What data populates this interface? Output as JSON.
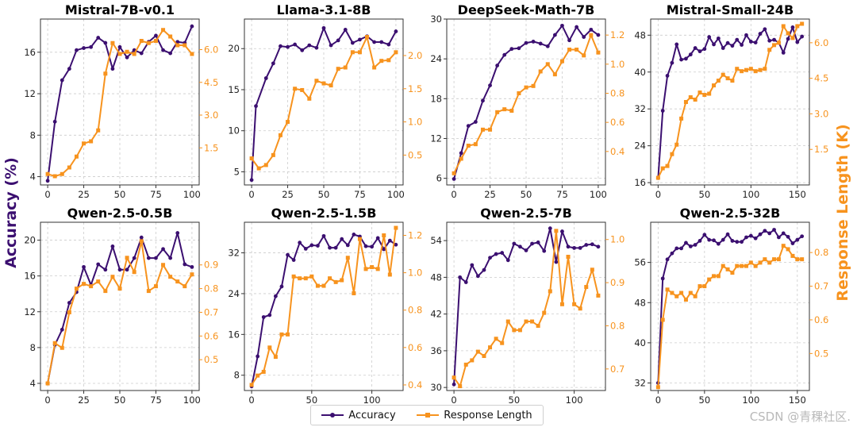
{
  "figure": {
    "left_ylabel": "Accuracy (%)",
    "right_ylabel": "Response Length (K)",
    "acc_color": "#3b0f70",
    "len_color": "#f7931e",
    "watermark": "CSDN @青稞社区.",
    "legend": {
      "accuracy": "Accuracy",
      "length": "Response Length"
    }
  },
  "chart_data": [
    {
      "type": "line",
      "title": "Mistral-7B-v0.1",
      "x": [
        0,
        5,
        10,
        15,
        20,
        25,
        30,
        35,
        40,
        45,
        50,
        55,
        60,
        65,
        70,
        75,
        80,
        85,
        90,
        95,
        100
      ],
      "xlim": [
        -5,
        105
      ],
      "xticks": [
        0,
        25,
        50,
        75,
        100
      ],
      "ylim": [
        3.2,
        19.2
      ],
      "yticks": [
        4,
        8,
        12,
        16
      ],
      "y2lim": [
        -0.2,
        7.4
      ],
      "y2ticks": [
        "1.5",
        "3.0",
        "4.5",
        "6.0"
      ],
      "series": [
        {
          "name": "Accuracy",
          "axis": "left",
          "values": [
            3.6,
            9.3,
            13.3,
            14.4,
            16.2,
            16.4,
            16.5,
            17.4,
            16.9,
            14.4,
            16.5,
            15.5,
            16.2,
            15.9,
            17.0,
            17.6,
            16.2,
            15.9,
            17.0,
            16.9,
            18.5
          ]
        },
        {
          "name": "Response Length",
          "axis": "right",
          "values": [
            0.3,
            0.2,
            0.3,
            0.6,
            1.1,
            1.7,
            1.8,
            2.3,
            4.9,
            6.3,
            5.8,
            5.9,
            5.8,
            6.4,
            6.3,
            6.4,
            6.9,
            6.6,
            6.2,
            6.2,
            5.8
          ]
        }
      ]
    },
    {
      "type": "line",
      "title": "Llama-3.1-8B",
      "x": [
        0,
        3,
        5,
        10,
        15,
        20,
        25,
        30,
        35,
        40,
        45,
        50,
        55,
        60,
        65,
        70,
        75,
        80,
        85,
        90,
        95,
        100
      ],
      "xlim": [
        -5,
        105
      ],
      "xticks": [
        0,
        25,
        50,
        75,
        100
      ],
      "ylim": [
        3.4,
        23.6
      ],
      "yticks": [
        5,
        10,
        15,
        20
      ],
      "y2lim": [
        0.05,
        2.55
      ],
      "y2ticks": [
        "0.5",
        "1.0",
        "1.5",
        "2.0"
      ],
      "series": [
        {
          "name": "Accuracy",
          "axis": "left",
          "values": [
            4.0,
            13.0,
            null,
            16.4,
            18.2,
            20.3,
            20.2,
            20.5,
            19.8,
            20.4,
            20.1,
            22.5,
            20.4,
            21.0,
            22.3,
            20.7,
            21.1,
            21.5,
            20.8,
            20.8,
            20.5,
            22.1
          ]
        },
        {
          "name": "Response Length",
          "axis": "right",
          "values": [
            0.45,
            null,
            0.3,
            0.35,
            0.5,
            0.8,
            1.0,
            1.5,
            1.48,
            1.35,
            1.62,
            1.58,
            1.55,
            1.8,
            1.82,
            2.05,
            2.05,
            2.28,
            1.82,
            1.92,
            1.93,
            2.05
          ]
        }
      ]
    },
    {
      "type": "line",
      "title": "DeepSeek-Math-7B",
      "x": [
        0,
        5,
        10,
        15,
        20,
        25,
        30,
        35,
        40,
        45,
        50,
        55,
        60,
        65,
        70,
        75,
        80,
        85,
        90,
        95,
        100
      ],
      "xlim": [
        -5,
        105
      ],
      "xticks": [
        0,
        25,
        50,
        75,
        100
      ],
      "ylim": [
        5.0,
        30.0
      ],
      "yticks": [
        6,
        12,
        18,
        24,
        30
      ],
      "y2lim": [
        0.17,
        1.31
      ],
      "y2ticks": [
        "0.4",
        "0.6",
        "0.8",
        "1.0",
        "1.2"
      ],
      "series": [
        {
          "name": "Accuracy",
          "axis": "left",
          "values": [
            5.9,
            9.8,
            13.9,
            14.5,
            17.7,
            20.0,
            23.0,
            24.6,
            25.5,
            25.6,
            26.4,
            26.6,
            26.3,
            25.9,
            27.6,
            29.0,
            26.8,
            28.8,
            27.3,
            28.4,
            27.6
          ]
        },
        {
          "name": "Response Length",
          "axis": "right",
          "values": [
            0.25,
            0.35,
            0.44,
            0.45,
            0.55,
            0.55,
            0.67,
            0.69,
            0.68,
            0.8,
            0.84,
            0.85,
            0.95,
            1.0,
            0.93,
            1.02,
            1.1,
            1.1,
            1.06,
            1.2,
            1.08
          ]
        }
      ]
    },
    {
      "type": "line",
      "title": "Mistral-Small-24B",
      "x": [
        0,
        5,
        10,
        15,
        20,
        25,
        30,
        35,
        40,
        45,
        50,
        55,
        60,
        65,
        70,
        75,
        80,
        85,
        90,
        95,
        100,
        105,
        110,
        115,
        120,
        125,
        130,
        135,
        140,
        145,
        150,
        155
      ],
      "xlim": [
        -8,
        163
      ],
      "xticks": [
        0,
        50,
        100,
        150
      ],
      "ylim": [
        15.5,
        51.5
      ],
      "yticks": [
        16,
        24,
        32,
        40,
        48
      ],
      "y2lim": [
        0.0,
        7.0
      ],
      "y2ticks": [
        "1.5",
        "3.0",
        "4.5",
        "6.0"
      ],
      "series": [
        {
          "name": "Accuracy",
          "axis": "left",
          "values": [
            17.0,
            31.6,
            39.2,
            42.0,
            46.0,
            42.7,
            42.9,
            43.8,
            45.2,
            44.5,
            45.0,
            47.6,
            46.0,
            47.3,
            45.2,
            46.3,
            45.7,
            47.0,
            45.9,
            48.0,
            46.6,
            46.4,
            48.3,
            49.3,
            46.8,
            47.0,
            46.4,
            44.2,
            47.2,
            49.7,
            46.5,
            47.7
          ]
        },
        {
          "name": "Response Length",
          "axis": "right",
          "values": [
            0.3,
            0.7,
            0.8,
            1.3,
            1.7,
            2.8,
            3.5,
            3.7,
            3.6,
            3.9,
            3.8,
            3.85,
            4.2,
            4.4,
            4.65,
            4.5,
            4.4,
            4.9,
            4.8,
            4.85,
            4.9,
            4.8,
            4.85,
            4.9,
            5.7,
            5.9,
            6.0,
            6.7,
            6.4,
            6.2,
            6.7,
            6.8
          ]
        }
      ]
    },
    {
      "type": "line",
      "title": "Qwen-2.5-0.5B",
      "x": [
        0,
        5,
        10,
        15,
        20,
        25,
        30,
        35,
        40,
        45,
        50,
        55,
        60,
        65,
        70,
        75,
        80,
        85,
        90,
        95,
        100
      ],
      "xlim": [
        -5,
        105
      ],
      "xticks": [
        0,
        25,
        50,
        75,
        100
      ],
      "ylim": [
        3.2,
        22.0
      ],
      "yticks": [
        4,
        8,
        12,
        16,
        20
      ],
      "y2lim": [
        0.37,
        1.08
      ],
      "y2ticks": [
        "0.5",
        "0.6",
        "0.7",
        "0.8",
        "0.9"
      ],
      "series": [
        {
          "name": "Accuracy",
          "axis": "left",
          "values": [
            4.0,
            8.3,
            10.0,
            13.0,
            14.2,
            17.0,
            15.0,
            17.3,
            16.7,
            19.3,
            16.7,
            16.7,
            18.0,
            20.3,
            18.0,
            18.0,
            19.0,
            18.0,
            20.8,
            17.3,
            17.0
          ]
        },
        {
          "name": "Response Length",
          "axis": "right",
          "values": [
            0.4,
            0.57,
            0.55,
            0.7,
            0.8,
            0.82,
            0.81,
            0.83,
            0.79,
            0.85,
            0.8,
            0.93,
            0.87,
            1.0,
            0.79,
            0.81,
            0.9,
            0.85,
            0.83,
            0.81,
            0.86
          ]
        }
      ]
    },
    {
      "type": "line",
      "title": "Qwen-2.5-1.5B",
      "x": [
        0,
        5,
        10,
        15,
        20,
        25,
        30,
        35,
        40,
        45,
        50,
        55,
        60,
        65,
        70,
        75,
        80,
        85,
        90,
        95,
        100,
        105,
        110,
        115,
        120
      ],
      "xlim": [
        -6,
        126
      ],
      "xticks": [
        0,
        50,
        100
      ],
      "ylim": [
        5.0,
        38.0
      ],
      "yticks": [
        8,
        16,
        24,
        32
      ],
      "y2lim": [
        0.37,
        1.27
      ],
      "y2ticks": [
        "0.4",
        "0.6",
        "0.8",
        "1.0",
        "1.2"
      ],
      "series": [
        {
          "name": "Accuracy",
          "axis": "left",
          "values": [
            5.8,
            11.7,
            19.4,
            19.8,
            23.5,
            25.4,
            31.6,
            30.6,
            34.0,
            32.8,
            33.5,
            33.4,
            35.3,
            33.0,
            33.0,
            34.7,
            33.5,
            35.6,
            35.2,
            33.3,
            33.2,
            34.9,
            32.7,
            34.4,
            33.6
          ]
        },
        {
          "name": "Response Length",
          "axis": "right",
          "values": [
            0.4,
            0.45,
            0.47,
            0.6,
            0.55,
            0.67,
            0.67,
            0.98,
            0.97,
            0.97,
            0.98,
            0.93,
            0.93,
            0.97,
            0.95,
            0.96,
            1.08,
            0.89,
            1.18,
            1.02,
            1.03,
            1.02,
            1.2,
            0.99,
            1.24
          ]
        }
      ]
    },
    {
      "type": "line",
      "title": "Qwen-2.5-7B",
      "x": [
        0,
        5,
        10,
        15,
        20,
        25,
        30,
        35,
        40,
        45,
        50,
        55,
        60,
        65,
        70,
        75,
        80,
        85,
        90,
        95,
        100,
        105,
        110,
        115,
        120
      ],
      "xlim": [
        -6,
        126
      ],
      "xticks": [
        0,
        50,
        100
      ],
      "ylim": [
        29.5,
        57.0
      ],
      "yticks": [
        30,
        36,
        42,
        48,
        54
      ],
      "y2lim": [
        0.65,
        1.04
      ],
      "y2ticks": [
        "0.7",
        "0.8",
        "0.9",
        "1.0"
      ],
      "series": [
        {
          "name": "Accuracy",
          "axis": "left",
          "values": [
            30.5,
            48.0,
            47.2,
            50.0,
            48.2,
            49.2,
            51.2,
            51.8,
            52.0,
            50.8,
            53.5,
            53.0,
            52.4,
            53.5,
            53.7,
            52.3,
            56.0,
            50.5,
            55.5,
            53.0,
            52.8,
            52.8,
            53.3,
            53.4,
            53.0
          ]
        },
        {
          "name": "Response Length",
          "axis": "right",
          "values": [
            0.68,
            0.66,
            0.71,
            0.72,
            0.74,
            0.73,
            0.75,
            0.77,
            0.76,
            0.81,
            0.79,
            0.79,
            0.81,
            0.81,
            0.8,
            0.83,
            0.88,
            1.02,
            0.85,
            0.96,
            0.85,
            0.84,
            0.89,
            0.93,
            0.87
          ]
        }
      ]
    },
    {
      "type": "line",
      "title": "Qwen-2.5-32B",
      "x": [
        0,
        5,
        10,
        15,
        20,
        25,
        30,
        35,
        40,
        45,
        50,
        55,
        60,
        65,
        70,
        75,
        80,
        85,
        90,
        95,
        100,
        105,
        110,
        115,
        120,
        125,
        130,
        135,
        140,
        145,
        150,
        155
      ],
      "xlim": [
        -8,
        163
      ],
      "xticks": [
        0,
        50,
        100,
        150
      ],
      "ylim": [
        30.5,
        64.0
      ],
      "yticks": [
        32,
        40,
        48,
        56
      ],
      "y2lim": [
        0.39,
        0.89
      ],
      "y2ticks": [
        "0.5",
        "0.6",
        "0.7",
        "0.8"
      ],
      "series": [
        {
          "name": "Accuracy",
          "axis": "left",
          "values": [
            32.0,
            52.8,
            56.6,
            57.8,
            58.8,
            58.8,
            59.9,
            59.2,
            59.5,
            60.3,
            61.5,
            60.5,
            60.4,
            59.7,
            60.5,
            61.6,
            60.3,
            60.1,
            60.1,
            61.0,
            61.3,
            60.8,
            61.6,
            62.3,
            61.8,
            62.5,
            61.0,
            61.8,
            61.1,
            59.8,
            60.5,
            61.2
          ]
        },
        {
          "name": "Response Length",
          "axis": "right",
          "values": [
            0.4,
            0.6,
            0.69,
            0.68,
            0.67,
            0.68,
            0.66,
            0.68,
            0.67,
            0.7,
            0.7,
            0.72,
            0.73,
            0.73,
            0.76,
            0.75,
            0.74,
            0.76,
            0.76,
            0.76,
            0.77,
            0.76,
            0.77,
            0.78,
            0.77,
            0.78,
            0.78,
            0.82,
            0.81,
            0.79,
            0.78,
            0.78
          ]
        }
      ]
    }
  ]
}
